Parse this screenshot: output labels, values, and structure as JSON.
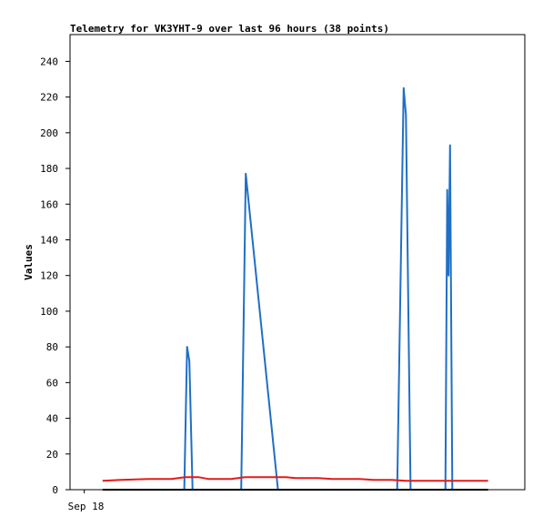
{
  "chart_data": {
    "type": "line",
    "title": "Telemetry for VK3YHT-9 over last 96 hours (38 points)",
    "ylabel": "Values",
    "xlabel": "",
    "x_tick_labels": [
      "Sep 18"
    ],
    "ylim": [
      0,
      255
    ],
    "y_ticks": [
      0,
      20,
      40,
      60,
      80,
      100,
      120,
      140,
      160,
      180,
      200,
      220,
      240
    ],
    "grid": false,
    "legend": "none",
    "x_range_hours": [
      -3.1,
      96
    ],
    "series": [
      {
        "color": "#1f6fc5",
        "points": [
          [
            18.8,
            0
          ],
          [
            21.8,
            0
          ],
          [
            22.4,
            80
          ],
          [
            22.9,
            72
          ],
          [
            23.6,
            0
          ],
          [
            24.6,
            0
          ],
          [
            34.2,
            0
          ],
          [
            35.2,
            177
          ],
          [
            42.2,
            0
          ],
          [
            43.2,
            0
          ],
          [
            68.2,
            0
          ],
          [
            69.6,
            225
          ],
          [
            70.1,
            210
          ],
          [
            71.1,
            0
          ],
          [
            78.7,
            0
          ],
          [
            79.1,
            168
          ],
          [
            79.4,
            120
          ],
          [
            79.7,
            193
          ],
          [
            80.2,
            0
          ],
          [
            81.8,
            0
          ]
        ]
      },
      {
        "color": "#e41a1c",
        "points": [
          [
            4.0,
            5
          ],
          [
            8.0,
            5.5
          ],
          [
            14.0,
            6
          ],
          [
            19.0,
            6
          ],
          [
            22.0,
            7
          ],
          [
            25.0,
            7
          ],
          [
            27.0,
            6
          ],
          [
            32.0,
            6
          ],
          [
            35.0,
            7
          ],
          [
            44.0,
            7
          ],
          [
            46.0,
            6.5
          ],
          [
            51.0,
            6.5
          ],
          [
            54.0,
            6
          ],
          [
            60.0,
            6
          ],
          [
            63.0,
            5.5
          ],
          [
            67.0,
            5.5
          ],
          [
            70.0,
            5
          ],
          [
            88.0,
            5
          ]
        ]
      },
      {
        "color": "#000000",
        "points": [
          [
            4.0,
            0
          ],
          [
            88.0,
            0
          ]
        ]
      }
    ]
  }
}
